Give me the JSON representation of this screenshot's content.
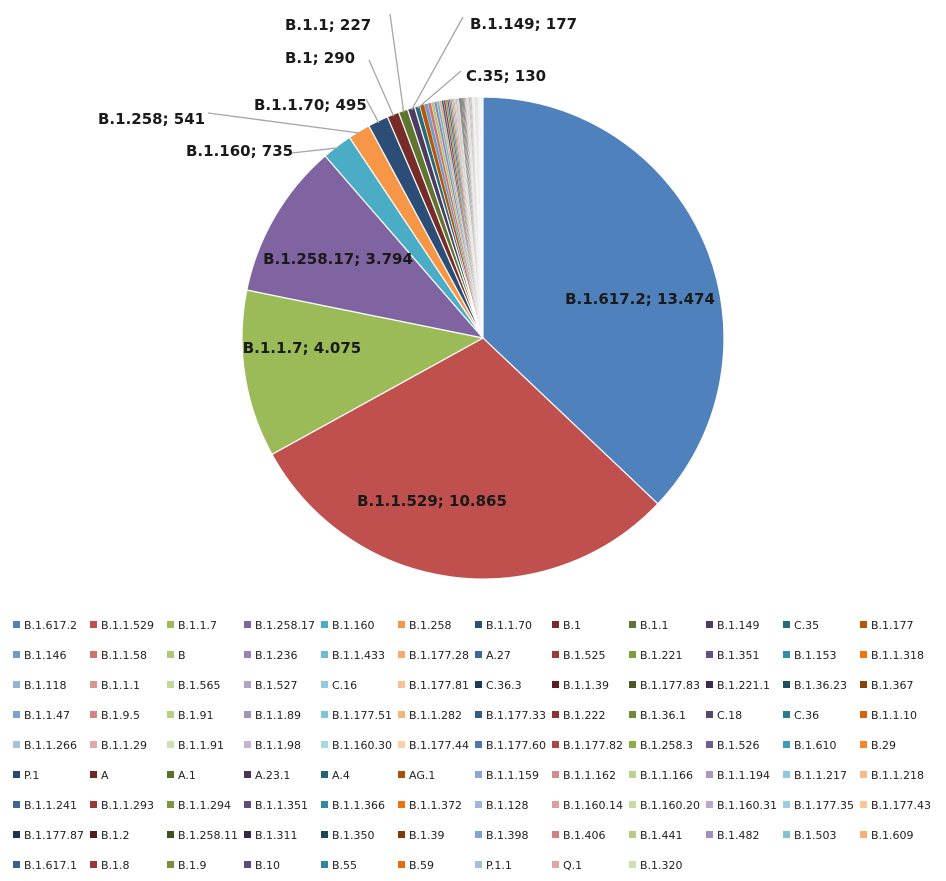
{
  "chart_data": {
    "type": "pie",
    "title": "",
    "labels": {
      "B.1.617.2": "B.1.617.2; 13.474",
      "B.1.1.529": "B.1.1.529; 10.865",
      "B.1.1.7": "B.1.1.7; 4.075",
      "B.1.258.17": "B.1.258.17; 3.794",
      "B.1.160": "B.1.160; 735",
      "B.1.258": "B.1.258; 541",
      "B.1.1.70": "B.1.1.70; 495",
      "B.1": "B.1; 290",
      "B.1.1": "B.1.1; 227",
      "B.1.149": "B.1.149; 177",
      "C.35": "C.35; 130"
    },
    "legend_placement": "bottom",
    "slices": [
      {
        "name": "B.1.617.2",
        "value": 13474,
        "color": "#4f81bd"
      },
      {
        "name": "B.1.1.529",
        "value": 10865,
        "color": "#c0504d"
      },
      {
        "name": "B.1.1.7",
        "value": 4075,
        "color": "#9bbb59"
      },
      {
        "name": "B.1.258.17",
        "value": 3794,
        "color": "#8064a2"
      },
      {
        "name": "B.1.160",
        "value": 735,
        "color": "#4bacc6"
      },
      {
        "name": "B.1.258",
        "value": 541,
        "color": "#f79646"
      },
      {
        "name": "B.1.1.70",
        "value": 495,
        "color": "#2c4d75"
      },
      {
        "name": "B.1",
        "value": 290,
        "color": "#772c2a"
      },
      {
        "name": "B.1.1",
        "value": 227,
        "color": "#5f7530"
      },
      {
        "name": "B.1.149",
        "value": 177,
        "color": "#4d3b62"
      },
      {
        "name": "C.35",
        "value": 130,
        "color": "#276a7c"
      },
      {
        "name": "B.1.177",
        "value": 110,
        "color": "#b65708"
      },
      {
        "name": "B.1.146",
        "value": 90,
        "color": "#729aca"
      },
      {
        "name": "B.1.1.58",
        "value": 80,
        "color": "#cd7371"
      },
      {
        "name": "B",
        "value": 72,
        "color": "#afc97a"
      },
      {
        "name": "B.1.236",
        "value": 65,
        "color": "#9983b5"
      },
      {
        "name": "B.1.1.433",
        "value": 60,
        "color": "#6fbdd1"
      },
      {
        "name": "B.1.177.28",
        "value": 55,
        "color": "#f9ab6b"
      },
      {
        "name": "A.27",
        "value": 50,
        "color": "#3a679c"
      },
      {
        "name": "B.1.525",
        "value": 46,
        "color": "#9e3b38"
      },
      {
        "name": "B.1.221",
        "value": 42,
        "color": "#7e9c40"
      },
      {
        "name": "B.1.351",
        "value": 40,
        "color": "#664f83"
      },
      {
        "name": "B.1.153",
        "value": 38,
        "color": "#348da5"
      },
      {
        "name": "B.1.1.318",
        "value": 36,
        "color": "#f3740b"
      },
      {
        "name": "B.1.118",
        "value": 34,
        "color": "#95b3d7"
      },
      {
        "name": "B.1.1.1",
        "value": 32,
        "color": "#d99694"
      },
      {
        "name": "B.1.565",
        "value": 30,
        "color": "#c3d69b"
      },
      {
        "name": "B.1.527",
        "value": 28,
        "color": "#b3a2c7"
      },
      {
        "name": "C.16",
        "value": 27,
        "color": "#93cddd"
      },
      {
        "name": "B.1.177.81",
        "value": 26,
        "color": "#fac090"
      },
      {
        "name": "C.36.3",
        "value": 25,
        "color": "#1f3a5a"
      },
      {
        "name": "B.1.1.39",
        "value": 24,
        "color": "#5c1f1e"
      },
      {
        "name": "B.1.177.83",
        "value": 23,
        "color": "#475924"
      },
      {
        "name": "B.1.221.1",
        "value": 22,
        "color": "#3a2c4a"
      },
      {
        "name": "B.1.36.23",
        "value": 21,
        "color": "#1d505e"
      },
      {
        "name": "B.1.367",
        "value": 20,
        "color": "#894206"
      },
      {
        "name": "B.1.1.47",
        "value": 19,
        "color": "#7ea2cf"
      },
      {
        "name": "B.1.9.5",
        "value": 18,
        "color": "#d38583"
      },
      {
        "name": "B.1.91",
        "value": 17,
        "color": "#b8cf86"
      },
      {
        "name": "B.1.1.89",
        "value": 16,
        "color": "#a592bd"
      },
      {
        "name": "B.1.177.51",
        "value": 15,
        "color": "#82c5d8"
      },
      {
        "name": "B.1.1.282",
        "value": 15,
        "color": "#f8b37a"
      },
      {
        "name": "B.1.177.33",
        "value": 14,
        "color": "#335b8a"
      },
      {
        "name": "B.1.222",
        "value": 14,
        "color": "#8c3432"
      },
      {
        "name": "B.1.36.1",
        "value": 13,
        "color": "#6f8a39"
      },
      {
        "name": "C.18",
        "value": 13,
        "color": "#594472"
      },
      {
        "name": "C.36",
        "value": 12,
        "color": "#2e7b91"
      },
      {
        "name": "B.1.1.10",
        "value": 12,
        "color": "#d56509"
      },
      {
        "name": "B.1.1.266",
        "value": 11,
        "color": "#a7c0de"
      },
      {
        "name": "B.1.1.29",
        "value": 11,
        "color": "#e0a8a6"
      },
      {
        "name": "B.1.1.91",
        "value": 10,
        "color": "#cfe0b0"
      },
      {
        "name": "B.1.1.98",
        "value": 10,
        "color": "#c2b4d2"
      },
      {
        "name": "B.1.160.30",
        "value": 10,
        "color": "#a9d8e5"
      },
      {
        "name": "B.1.177.44",
        "value": 9,
        "color": "#fccfa8"
      },
      {
        "name": "B.1.177.60",
        "value": 9,
        "color": "#4a78b0"
      },
      {
        "name": "B.1.177.82",
        "value": 9,
        "color": "#b04542"
      },
      {
        "name": "B.1.258.3",
        "value": 8,
        "color": "#8cab4b"
      },
      {
        "name": "B.1.526",
        "value": 8,
        "color": "#735b93"
      },
      {
        "name": "B.1.610",
        "value": 8,
        "color": "#3f9cb6"
      },
      {
        "name": "B.29",
        "value": 7,
        "color": "#f5872a"
      },
      {
        "name": "P.1",
        "value": 7,
        "color": "#2a4770"
      },
      {
        "name": "A",
        "value": 7,
        "color": "#6e2826"
      },
      {
        "name": "A.1",
        "value": 6,
        "color": "#57702c"
      },
      {
        "name": "A.23.1",
        "value": 6,
        "color": "#46365a"
      },
      {
        "name": "A.4",
        "value": 6,
        "color": "#236173"
      },
      {
        "name": "AG.1",
        "value": 6,
        "color": "#a85007"
      },
      {
        "name": "B.1.1.159",
        "value": 5,
        "color": "#88a9d2"
      },
      {
        "name": "B.1.1.162",
        "value": 5,
        "color": "#d28c8a"
      },
      {
        "name": "B.1.1.166",
        "value": 5,
        "color": "#bcd291"
      },
      {
        "name": "B.1.1.194",
        "value": 5,
        "color": "#ab9bc3"
      },
      {
        "name": "B.1.1.217",
        "value": 5,
        "color": "#8dcadb"
      },
      {
        "name": "B.1.1.218",
        "value": 5,
        "color": "#f9bb86"
      },
      {
        "name": "B.1.1.241",
        "value": 4,
        "color": "#3d6494"
      },
      {
        "name": "B.1.1.293",
        "value": 4,
        "color": "#9a3936"
      },
      {
        "name": "B.1.1.294",
        "value": 4,
        "color": "#7a973e"
      },
      {
        "name": "B.1.1.351",
        "value": 4,
        "color": "#624c7e"
      },
      {
        "name": "B.1.1.366",
        "value": 4,
        "color": "#328aa1"
      },
      {
        "name": "B.1.1.372",
        "value": 4,
        "color": "#ee710a"
      },
      {
        "name": "B.1.128",
        "value": 4,
        "color": "#9db8da"
      },
      {
        "name": "B.1.160.14",
        "value": 4,
        "color": "#dc9d9b"
      },
      {
        "name": "B.1.160.20",
        "value": 3,
        "color": "#c8d9a3"
      },
      {
        "name": "B.1.160.31",
        "value": 3,
        "color": "#b9a9cc"
      },
      {
        "name": "B.1.177.35",
        "value": 3,
        "color": "#9ad1e0"
      },
      {
        "name": "B.1.177.43",
        "value": 3,
        "color": "#fbc797"
      },
      {
        "name": "B.1.177.87",
        "value": 3,
        "color": "#1c3452"
      },
      {
        "name": "B.1.2",
        "value": 3,
        "color": "#521c1b"
      },
      {
        "name": "B.1.258.11",
        "value": 3,
        "color": "#405020"
      },
      {
        "name": "B.1.311",
        "value": 3,
        "color": "#342843"
      },
      {
        "name": "B.1.350",
        "value": 3,
        "color": "#1a4855"
      },
      {
        "name": "B.1.39",
        "value": 2,
        "color": "#7c3c05"
      },
      {
        "name": "B.1.398",
        "value": 2,
        "color": "#7fa3cf"
      },
      {
        "name": "B.1.406",
        "value": 2,
        "color": "#d0817f"
      },
      {
        "name": "B.1.441",
        "value": 2,
        "color": "#b5cd83"
      },
      {
        "name": "B.1.482",
        "value": 2,
        "color": "#a28fbb"
      },
      {
        "name": "B.1.503",
        "value": 2,
        "color": "#80c4d6"
      },
      {
        "name": "B.1.609",
        "value": 2,
        "color": "#f8b077"
      },
      {
        "name": "B.1.617.1",
        "value": 2,
        "color": "#36608f"
      },
      {
        "name": "B.1.8",
        "value": 2,
        "color": "#963835"
      },
      {
        "name": "B.1.9",
        "value": 1,
        "color": "#76933c"
      },
      {
        "name": "B.10",
        "value": 1,
        "color": "#5f4a7b"
      },
      {
        "name": "B.55",
        "value": 1,
        "color": "#31869d"
      },
      {
        "name": "B.59",
        "value": 1,
        "color": "#e86d0a"
      },
      {
        "name": "P.1.1",
        "value": 1,
        "color": "#a6bfdd"
      },
      {
        "name": "Q.1",
        "value": 1,
        "color": "#dfa6a4"
      },
      {
        "name": "B.1.320",
        "value": 1,
        "color": "#cde0ad"
      }
    ]
  }
}
